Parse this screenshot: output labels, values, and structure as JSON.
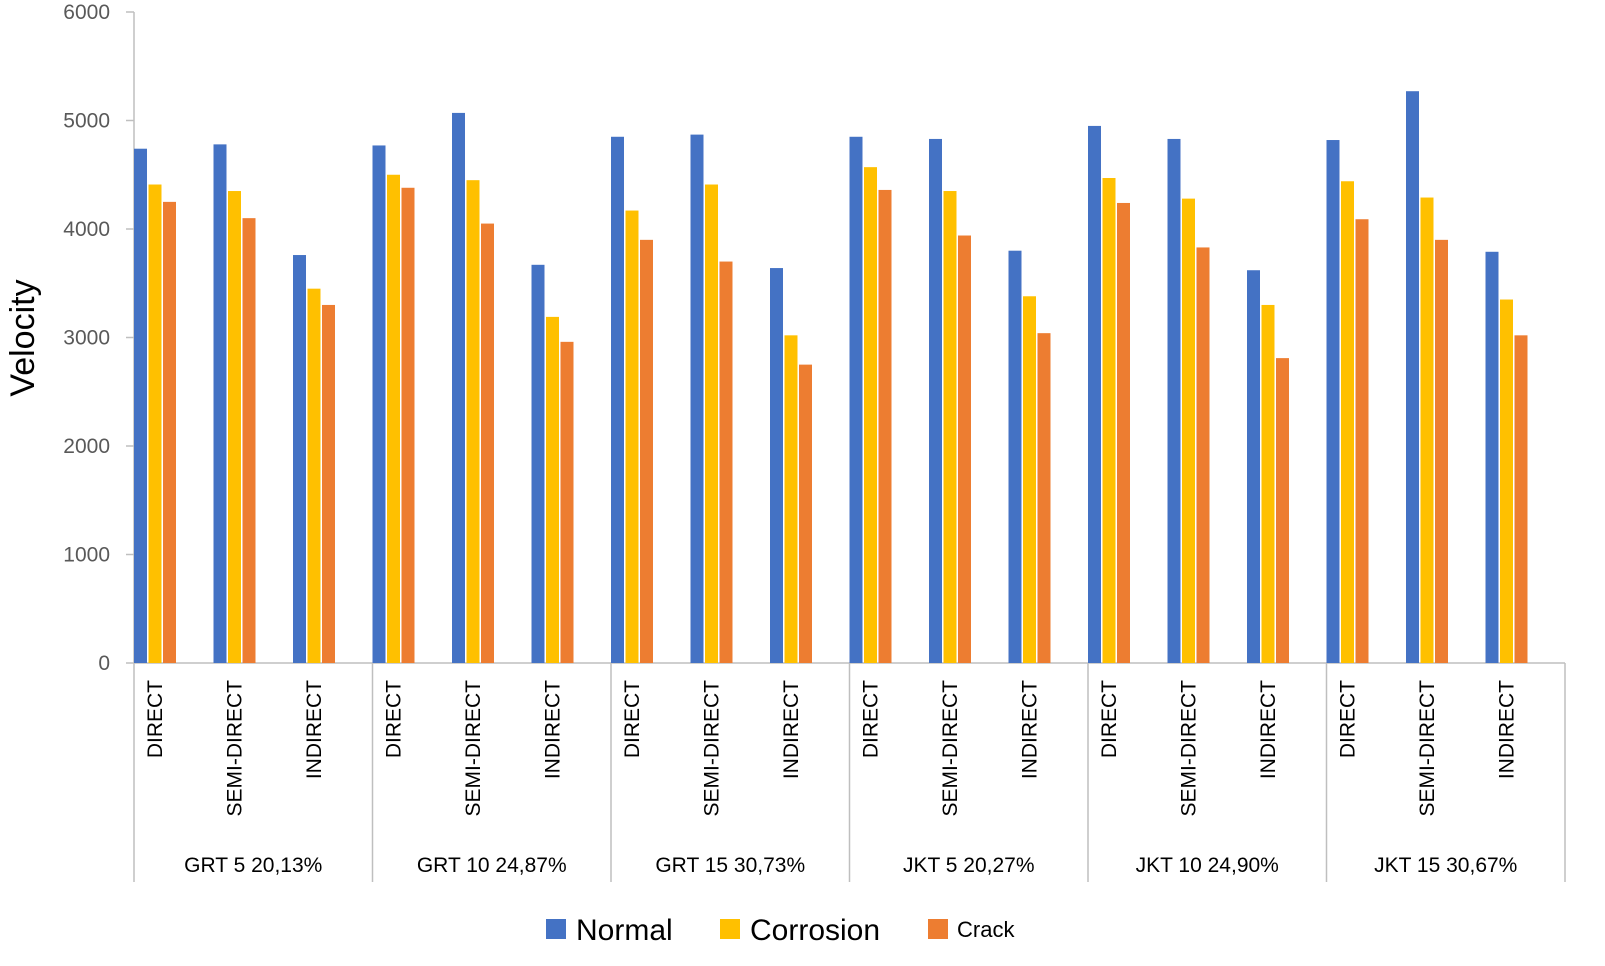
{
  "chart_data": {
    "type": "bar",
    "title": "",
    "xlabel": "",
    "ylabel": "Velocity",
    "ylim": [
      0,
      6000
    ],
    "yticks": [
      0,
      1000,
      2000,
      3000,
      4000,
      5000,
      6000
    ],
    "grid": false,
    "legend_position": "bottom",
    "groups": [
      {
        "label": "GRT 5 20,13%",
        "categories": [
          "DIRECT",
          "SEMI-DIRECT",
          "INDIRECT"
        ]
      },
      {
        "label": "GRT 10 24,87%",
        "categories": [
          "DIRECT",
          "SEMI-DIRECT",
          "INDIRECT"
        ]
      },
      {
        "label": "GRT 15 30,73%",
        "categories": [
          "DIRECT",
          "SEMI-DIRECT",
          "INDIRECT"
        ]
      },
      {
        "label": "JKT 5 20,27%",
        "categories": [
          "DIRECT",
          "SEMI-DIRECT",
          "INDIRECT"
        ]
      },
      {
        "label": "JKT 10 24,90%",
        "categories": [
          "DIRECT",
          "SEMI-DIRECT",
          "INDIRECT"
        ]
      },
      {
        "label": "JKT 15 30,67%",
        "categories": [
          "DIRECT",
          "SEMI-DIRECT",
          "INDIRECT"
        ]
      }
    ],
    "series": [
      {
        "name": "Normal",
        "color": "#4472C4",
        "values": [
          4740,
          4780,
          3760,
          4770,
          5070,
          3670,
          4850,
          4870,
          3640,
          4850,
          4830,
          3800,
          4950,
          4830,
          3620,
          4820,
          5270,
          3790
        ]
      },
      {
        "name": "Corrosion",
        "color": "#FFC000",
        "values": [
          4410,
          4350,
          3450,
          4500,
          4450,
          3190,
          4170,
          4410,
          3020,
          4570,
          4350,
          3380,
          4470,
          4280,
          3300,
          4440,
          4290,
          3350
        ]
      },
      {
        "name": "Crack",
        "color": "#ED7D31",
        "values": [
          4250,
          4100,
          3300,
          4380,
          4050,
          2960,
          3900,
          3700,
          2750,
          4360,
          3940,
          3040,
          4240,
          3830,
          2810,
          4090,
          3900,
          3020
        ]
      }
    ]
  }
}
